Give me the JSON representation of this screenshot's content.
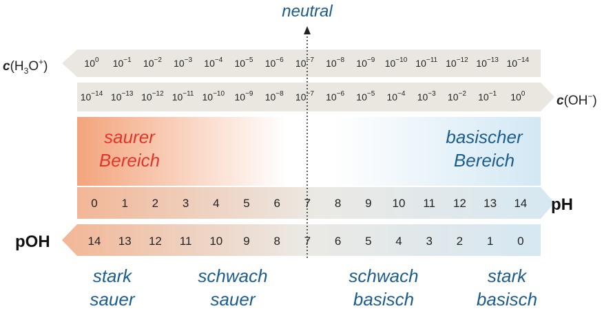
{
  "neutral": "neutral",
  "h3o": {
    "label": {
      "symbol": "c",
      "open": "(H",
      "sub": "3",
      "mid": "O",
      "sup": "+",
      "close": ")"
    },
    "cells": [
      {
        "base": "10",
        "exp": "0"
      },
      {
        "base": "10",
        "exp": "−1"
      },
      {
        "base": "10",
        "exp": "−2"
      },
      {
        "base": "10",
        "exp": "−3"
      },
      {
        "base": "10",
        "exp": "−4"
      },
      {
        "base": "10",
        "exp": "−5"
      },
      {
        "base": "10",
        "exp": "−6"
      },
      {
        "base": "10",
        "exp": "−7"
      },
      {
        "base": "10",
        "exp": "−8"
      },
      {
        "base": "10",
        "exp": "−9"
      },
      {
        "base": "10",
        "exp": "−10"
      },
      {
        "base": "10",
        "exp": "−11"
      },
      {
        "base": "10",
        "exp": "−12"
      },
      {
        "base": "10",
        "exp": "−13"
      },
      {
        "base": "10",
        "exp": "−14"
      }
    ]
  },
  "oh": {
    "label": {
      "symbol": "c",
      "open": "(OH",
      "sup": "−",
      "close": ")"
    },
    "cells": [
      {
        "base": "10",
        "exp": "−14"
      },
      {
        "base": "10",
        "exp": "−13"
      },
      {
        "base": "10",
        "exp": "−12"
      },
      {
        "base": "10",
        "exp": "−11"
      },
      {
        "base": "10",
        "exp": "−10"
      },
      {
        "base": "10",
        "exp": "−9"
      },
      {
        "base": "10",
        "exp": "−8"
      },
      {
        "base": "10",
        "exp": "−7"
      },
      {
        "base": "10",
        "exp": "−6"
      },
      {
        "base": "10",
        "exp": "−5"
      },
      {
        "base": "10",
        "exp": "−4"
      },
      {
        "base": "10",
        "exp": "−3"
      },
      {
        "base": "10",
        "exp": "−2"
      },
      {
        "base": "10",
        "exp": "−1"
      },
      {
        "base": "10",
        "exp": "0"
      }
    ]
  },
  "acid_region": [
    "saurer",
    "Bereich"
  ],
  "base_region": [
    "basischer",
    "Bereich"
  ],
  "ph": {
    "label": "pH",
    "values": [
      0,
      1,
      2,
      3,
      4,
      5,
      6,
      7,
      8,
      9,
      10,
      11,
      12,
      13,
      14
    ]
  },
  "poh": {
    "label": "pOH",
    "values": [
      14,
      13,
      12,
      11,
      10,
      9,
      8,
      7,
      6,
      5,
      4,
      3,
      2,
      1,
      0
    ]
  },
  "strength_labels": [
    [
      "stark",
      "sauer"
    ],
    [
      "schwach",
      "sauer"
    ],
    [
      "schwach",
      "basisch"
    ],
    [
      "stark",
      "basisch"
    ]
  ]
}
